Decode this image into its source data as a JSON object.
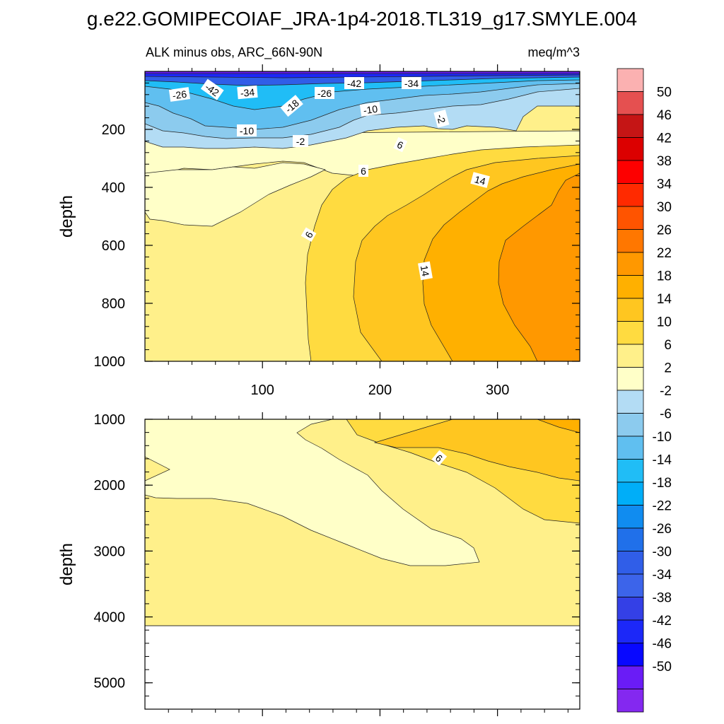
{
  "title": "g.e22.GOMIPECOIAF_JRA-1p4-2018.TL319_g17.SMYLE.004",
  "chart_data": [
    {
      "type": "heatmap",
      "panel": "upper",
      "left_string": "ALK minus obs, ARC_66N-90N",
      "right_string": "meq/m^3",
      "ylabel": "depth",
      "xlim": [
        0,
        370
      ],
      "ylim": [
        1000,
        0
      ],
      "y_reversed": true,
      "x_ticks": [
        100,
        200,
        300
      ],
      "y_ticks": [
        200,
        400,
        600,
        800,
        1000
      ],
      "contour_labels": [
        "-26",
        "-42",
        "-34",
        "-18",
        "-26",
        "-42",
        "-34",
        "-10",
        "-10",
        "-2",
        "-2",
        "6",
        "6",
        "14",
        "6",
        "14"
      ],
      "bands": [
        {
          "range": "-50 to -42",
          "region": "thin surface layer 0-10 m"
        },
        {
          "range": "-42 to -26",
          "region": "upper 10-60 m"
        },
        {
          "range": "-26 to -10",
          "region": "60-150 m, deepest near x 40-140"
        },
        {
          "range": "-10 to -2",
          "region": "near 150-200 m, x 200-320"
        },
        {
          "range": "-2 to 2",
          "region": "250-450 m west of x 140, thin band near 200 m"
        },
        {
          "range": "2 to 6",
          "region": "west part of column, 200-1000 m"
        },
        {
          "range": "6 to 10",
          "region": "diagonal band from x 140 at depth to x 240 near 300 m"
        },
        {
          "range": "10 to 14",
          "region": "diagonal band x 200-300"
        },
        {
          "range": "14 to 18",
          "region": "diagonal band x 240-330"
        },
        {
          "range": "18 to 22",
          "region": "east edge x 300-370, 300-1000 m"
        }
      ]
    },
    {
      "type": "heatmap",
      "panel": "lower",
      "ylabel": "depth",
      "xlim": [
        0,
        370
      ],
      "ylim": [
        5400,
        1000
      ],
      "y_reversed": true,
      "y_ticks": [
        1000,
        2000,
        3000,
        4000,
        5000
      ],
      "contour_labels": [
        "6"
      ],
      "data_extent_depth": 4120,
      "bands": [
        {
          "range": "-2 to 2",
          "region": "1000-3200 m, x 0-280"
        },
        {
          "range": "2 to 6",
          "region": "most of panel to 4120 m"
        },
        {
          "range": "6 to 10",
          "region": "east side 1000-2600 m"
        },
        {
          "range": "10 to 14",
          "region": "top-right corner near 1000 m"
        }
      ]
    }
  ],
  "colorbar": {
    "labels": [
      "50",
      "46",
      "42",
      "38",
      "34",
      "30",
      "26",
      "22",
      "18",
      "14",
      "10",
      "6",
      "2",
      "-2",
      "-6",
      "-10",
      "-14",
      "-18",
      "-22",
      "-26",
      "-30",
      "-34",
      "-38",
      "-42",
      "-46",
      "-50"
    ],
    "colors": [
      "#fbb1b1",
      "#e55050",
      "#c51515",
      "#dc0000",
      "#fd0000",
      "#ff2a00",
      "#ff5400",
      "#ff7700",
      "#ff9800",
      "#ffb000",
      "#ffc620",
      "#ffdb40",
      "#fff08a",
      "#ffffc8",
      "#b3dcf4",
      "#8ccbee",
      "#60bff0",
      "#20bdf6",
      "#00aef8",
      "#108cf0",
      "#2070ea",
      "#305ee8",
      "#3c64ea",
      "#3440e6",
      "#1c28f8",
      "#0808ff",
      "#6a1cf6",
      "#8428f0"
    ]
  },
  "colors": {
    "missing": "#ffffff",
    "contour_line": "#222222"
  }
}
